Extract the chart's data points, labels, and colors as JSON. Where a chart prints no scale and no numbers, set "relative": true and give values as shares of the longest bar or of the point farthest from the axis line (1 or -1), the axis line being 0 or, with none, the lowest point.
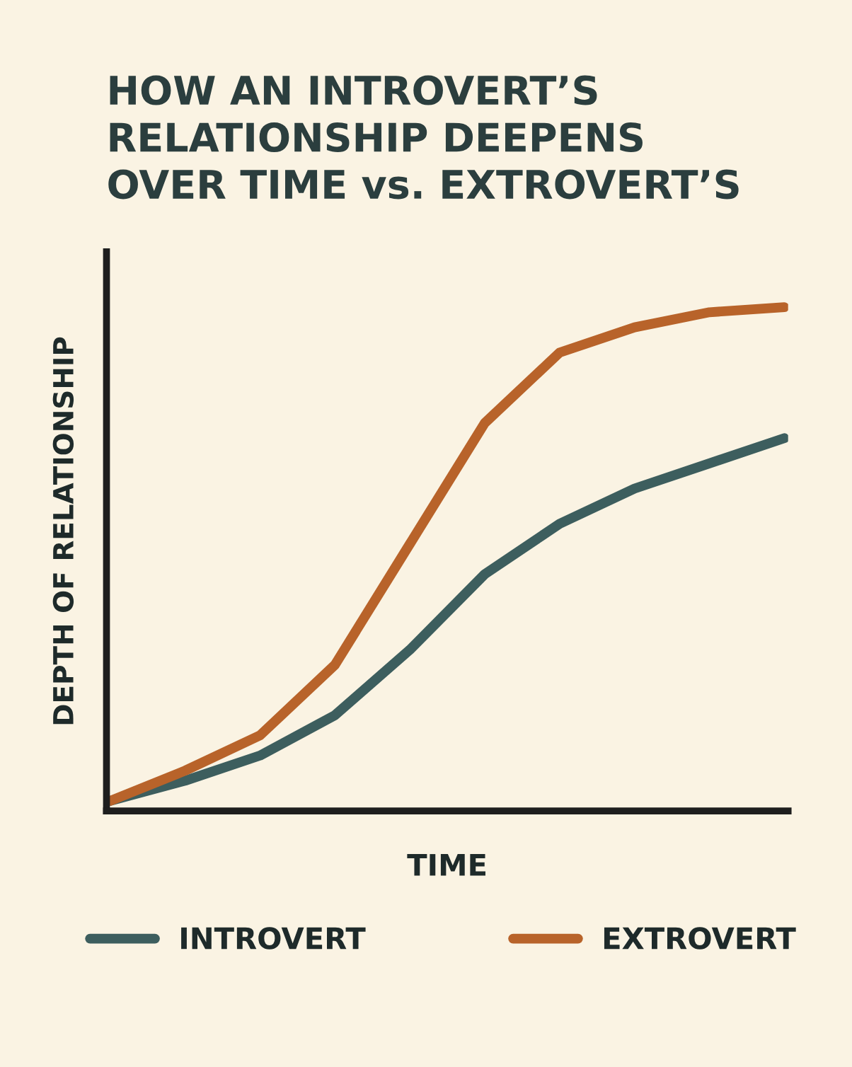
{
  "chart_data": {
    "type": "line",
    "title": "HOW AN INTROVERT’S\nRELATIONSHIP DEEPENS\nOVER TIME vs. EXTROVERT’S",
    "xlabel": "TIME",
    "ylabel": "DEPTH OF RELATIONSHIP",
    "relative": true,
    "categories": [
      null,
      null,
      null,
      null,
      null,
      null,
      null,
      null,
      null,
      null
    ],
    "series": [
      {
        "name": "INTROVERT",
        "color": "#3d5e5e",
        "values": [
          0.02,
          0.06,
          0.11,
          0.19,
          0.32,
          0.47,
          0.57,
          0.64,
          0.69,
          0.74
        ]
      },
      {
        "name": "EXTROVERT",
        "color": "#b8632a",
        "values": [
          0.02,
          0.08,
          0.15,
          0.29,
          0.53,
          0.77,
          0.91,
          0.96,
          0.99,
          1.0
        ]
      }
    ],
    "legend": "bottom",
    "grid": false,
    "marker": "none",
    "line_style": "solid"
  }
}
